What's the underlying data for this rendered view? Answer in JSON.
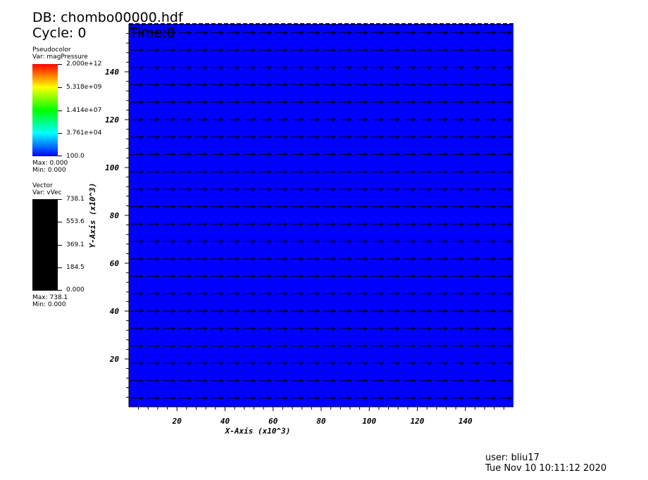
{
  "header": {
    "db": "DB: chombo00000.hdf",
    "cycle": "Cycle: 0",
    "time": "Time:0"
  },
  "pseudocolor_legend": {
    "title": "Pseudocolor",
    "var": "Var: magPressure",
    "ticks": [
      "2.000e+12",
      "5.318e+09",
      "1.414e+07",
      "3.761e+04",
      "100.0"
    ],
    "max": "Max:  0.000",
    "min": "Min:  0.000"
  },
  "vector_legend": {
    "title": "Vector",
    "var": "Var: vVec",
    "ticks": [
      "738.1",
      "553.6",
      "369.1",
      "184.5",
      "0.000"
    ],
    "max": "Max:  738.1",
    "min": "Min:  0.000",
    "bar_color": "#000000"
  },
  "footer": {
    "user": "user: bliu17",
    "date": "Tue Nov 10 10:11:12 2020"
  },
  "chart_data": {
    "type": "heatmap",
    "field_color": "#0000ff",
    "xlabel": "X-Axis (x10^3)",
    "ylabel": "Y-Axis (x10^3)",
    "xlim": [
      0,
      160
    ],
    "ylim": [
      0,
      160
    ],
    "xticks": [
      20,
      40,
      60,
      80,
      100,
      120,
      140
    ],
    "yticks": [
      20,
      40,
      60,
      80,
      100,
      120,
      140
    ],
    "vector_direction": "right",
    "vector_rows": 22,
    "vector_cols": 24,
    "vector_color": "#000000"
  }
}
